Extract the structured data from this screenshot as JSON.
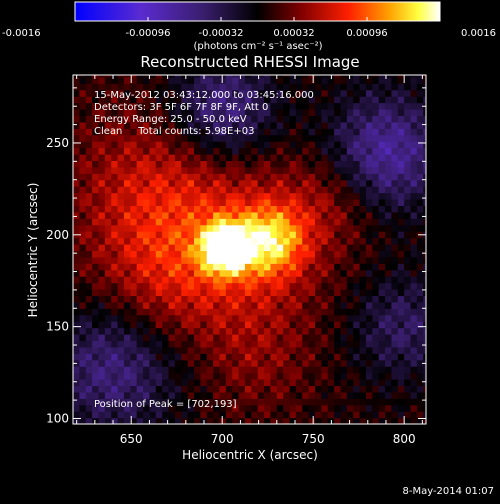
{
  "chart_data": {
    "type": "heatmap",
    "title": "Reconstructed RHESSI Image",
    "xlabel": "Heliocentric X (arcsec)",
    "ylabel": "Heliocentric Y (arcsec)",
    "xlim": [
      618,
      812
    ],
    "ylim": [
      97,
      287
    ],
    "xticks": [
      650,
      700,
      750,
      800
    ],
    "yticks": [
      100,
      150,
      200,
      250
    ],
    "colorbar": {
      "range": [
        -0.0016,
        0.0016
      ],
      "ticks": [
        "-0.0016",
        "-0.00096",
        "-0.00032",
        "0.00032",
        "0.00096",
        "0.0016"
      ],
      "unit_label": "(photons cm⁻² s⁻¹ asec⁻²)",
      "colormap": [
        "#0000ff",
        "#5a2bd0",
        "#3a1e6e",
        "#000000",
        "#800000",
        "#ff2000",
        "#ffa000",
        "#ffff40",
        "#ffffff"
      ]
    },
    "annotations": [
      "15-May-2012 03:43:12.000 to 03:45:16.000",
      "Detectors: 3F 5F 6F 7F 8F 9F, Att 0",
      "Energy Range: 25.0 - 50.0 keV",
      "Clean     Total counts: 5.98E+03"
    ],
    "peak_label": "Position of Peak = [702,193]",
    "peak": [
      702,
      193
    ]
  },
  "footer_timestamp": "8-May-2014 01:07"
}
